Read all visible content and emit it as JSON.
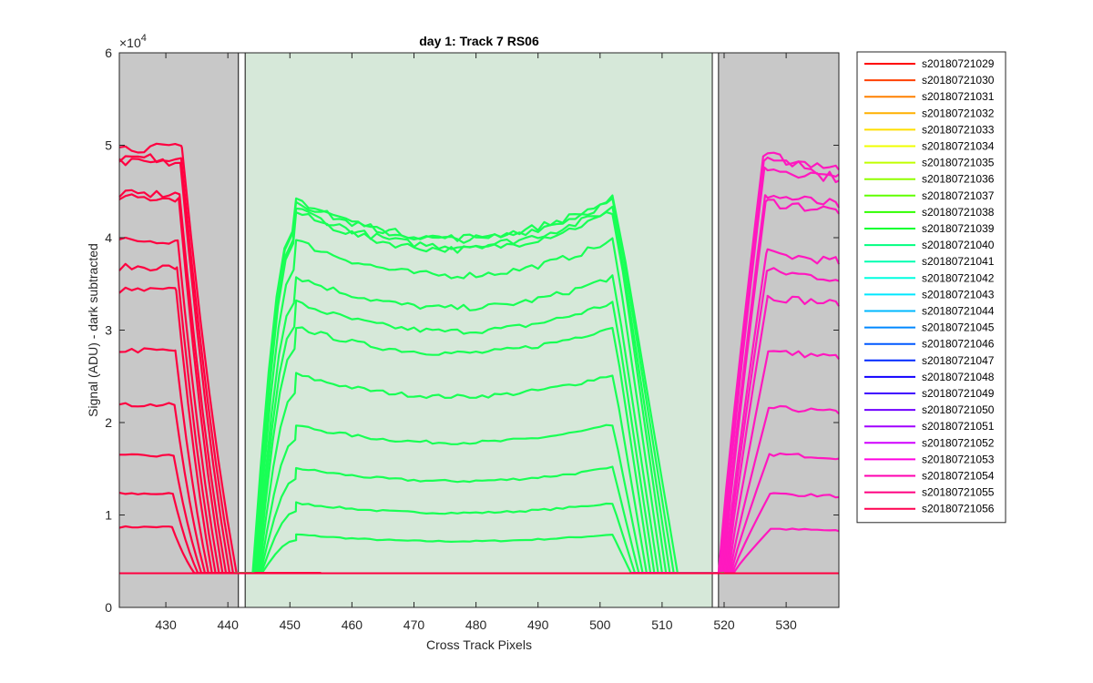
{
  "chart_data": {
    "type": "line",
    "title": "day 1: Track 7  RS06",
    "xlabel": "Cross Track Pixels",
    "ylabel": "Signal (ADU) - dark subtracted",
    "xlim": [
      422.5,
      538.5
    ],
    "ylim": [
      0,
      60000
    ],
    "x_ticks": [
      430,
      440,
      450,
      460,
      470,
      480,
      490,
      500,
      510,
      520,
      530
    ],
    "y_ticks": [
      0,
      1,
      2,
      3,
      4,
      5,
      6
    ],
    "y_tick_labels": [
      "0",
      "1",
      "2",
      "3",
      "4",
      "5",
      "6"
    ],
    "y_exponent_label": "×10",
    "y_exponent_power": "4",
    "baseline": 3700,
    "grid": false,
    "legend_position": "outside-right",
    "regions": [
      {
        "name": "left-gray-region",
        "x0": 422.5,
        "x1": 441.7,
        "color": "#c8c8c8"
      },
      {
        "name": "left-boundary-box",
        "x0": 441.7,
        "x1": 442.8,
        "color": "#ffffff"
      },
      {
        "name": "green-active-region",
        "x0": 442.8,
        "x1": 518.1,
        "color": "#d6e8d9"
      },
      {
        "name": "right-boundary-box",
        "x0": 518.1,
        "x1": 519.1,
        "color": "#ffffff"
      },
      {
        "name": "right-gray-region",
        "x0": 519.1,
        "x1": 538.5,
        "color": "#c8c8c8"
      }
    ],
    "level_colors": {
      "left": "#ff0040",
      "middle": "#19ff55",
      "right": "#ff19bf"
    },
    "levels": [
      {
        "left": 8700,
        "middle": 7900,
        "right": 8500
      },
      {
        "left": 12300,
        "middle": 11300,
        "right": 12300
      },
      {
        "left": 16400,
        "middle": 15100,
        "right": 16600
      },
      {
        "left": 21900,
        "middle": 19700,
        "right": 21600
      },
      {
        "left": 27800,
        "middle": 25200,
        "right": 27700
      },
      {
        "left": 34300,
        "middle": 30400,
        "right": 33600
      },
      {
        "left": 36800,
        "middle": 33000,
        "right": 36400
      },
      {
        "left": 39700,
        "middle": 35800,
        "right": 38300
      },
      {
        "left": 44300,
        "middle": 39700,
        "right": 43900
      },
      {
        "left": 44700,
        "middle": 42800,
        "right": 44600
      },
      {
        "left": 48100,
        "middle": 43200,
        "right": 47600
      },
      {
        "left": 48600,
        "middle": 44000,
        "right": 48300
      },
      {
        "left": 49700,
        "middle": 44200,
        "right": 48800
      }
    ],
    "legend": [
      {
        "name": "s20180721029",
        "color": "#ff0000"
      },
      {
        "name": "s20180721030",
        "color": "#ff4000"
      },
      {
        "name": "s20180721031",
        "color": "#ff8000"
      },
      {
        "name": "s20180721032",
        "color": "#ffb000"
      },
      {
        "name": "s20180721033",
        "color": "#ffdf00"
      },
      {
        "name": "s20180721034",
        "color": "#f0ff00"
      },
      {
        "name": "s20180721035",
        "color": "#c0ff00"
      },
      {
        "name": "s20180721036",
        "color": "#90ff00"
      },
      {
        "name": "s20180721037",
        "color": "#60ff00"
      },
      {
        "name": "s20180721038",
        "color": "#30ff00"
      },
      {
        "name": "s20180721039",
        "color": "#00ff30"
      },
      {
        "name": "s20180721040",
        "color": "#00ff80"
      },
      {
        "name": "s20180721041",
        "color": "#00ffb0"
      },
      {
        "name": "s20180721042",
        "color": "#00ffe0"
      },
      {
        "name": "s20180721043",
        "color": "#00e8ff"
      },
      {
        "name": "s20180721044",
        "color": "#00b8ff"
      },
      {
        "name": "s20180721045",
        "color": "#0088ff"
      },
      {
        "name": "s20180721046",
        "color": "#0058ff"
      },
      {
        "name": "s20180721047",
        "color": "#0028ff"
      },
      {
        "name": "s20180721048",
        "color": "#1000ff"
      },
      {
        "name": "s20180721049",
        "color": "#4000ff"
      },
      {
        "name": "s20180721050",
        "color": "#7000ff"
      },
      {
        "name": "s20180721051",
        "color": "#a000ff"
      },
      {
        "name": "s20180721052",
        "color": "#d000ff"
      },
      {
        "name": "s20180721053",
        "color": "#ff00e0"
      },
      {
        "name": "s20180721054",
        "color": "#ff00b0"
      },
      {
        "name": "s20180721055",
        "color": "#ff0080"
      },
      {
        "name": "s20180721056",
        "color": "#ff0050"
      }
    ]
  }
}
